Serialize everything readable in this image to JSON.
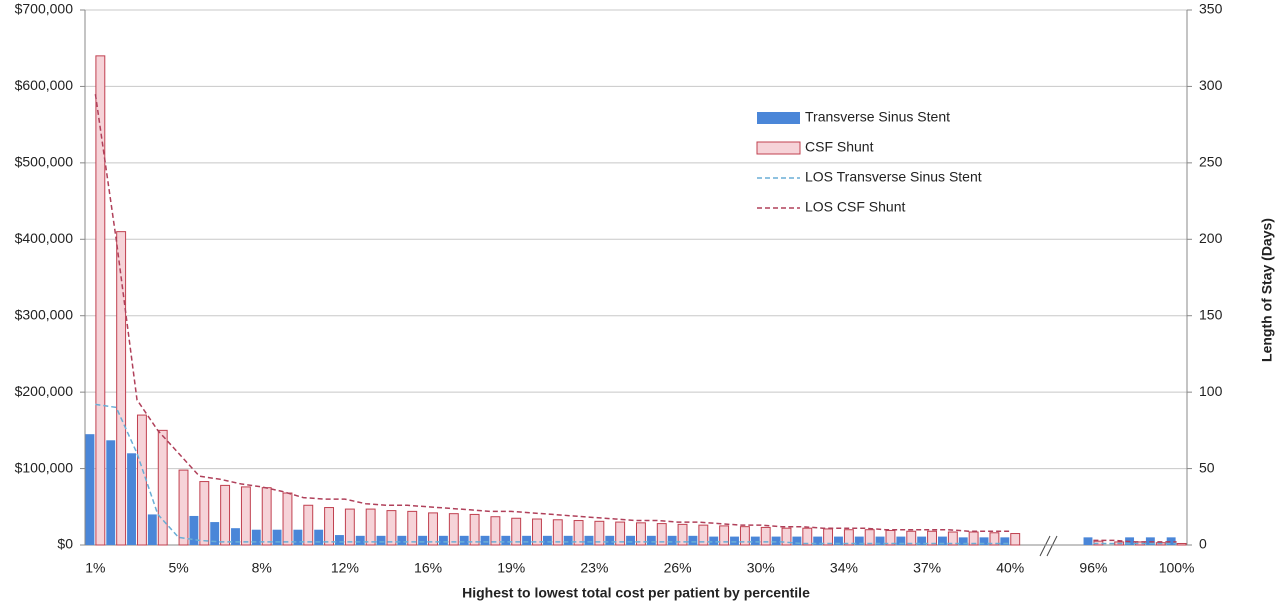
{
  "chart_data": {
    "type": "bar",
    "xlabel": "Highest to lowest total cost per patient by percentile",
    "y2label": "Length of Stay (Days)",
    "categories": [
      "1%",
      null,
      null,
      null,
      "5%",
      null,
      null,
      null,
      "8%",
      null,
      null,
      null,
      "12%",
      null,
      null,
      null,
      "16%",
      null,
      null,
      null,
      "19%",
      null,
      null,
      null,
      "23%",
      null,
      null,
      null,
      "26%",
      null,
      null,
      null,
      "30%",
      null,
      null,
      null,
      "34%",
      null,
      null,
      null,
      "37%",
      null,
      null,
      null,
      "40%",
      null,
      null,
      null,
      "96%",
      null,
      null,
      null,
      "100%"
    ],
    "ylim": [
      0,
      700000
    ],
    "yticks": [
      {
        "value": 0,
        "label": "$0"
      },
      {
        "value": 100000,
        "label": "$100,000"
      },
      {
        "value": 200000,
        "label": "$200,000"
      },
      {
        "value": 300000,
        "label": "$300,000"
      },
      {
        "value": 400000,
        "label": "$400,000"
      },
      {
        "value": 500000,
        "label": "$500,000"
      },
      {
        "value": 600000,
        "label": "$600,000"
      },
      {
        "value": 700000,
        "label": "$700,000"
      }
    ],
    "y2lim": [
      0,
      350
    ],
    "y2ticks": [
      0,
      50,
      100,
      150,
      200,
      250,
      300,
      350
    ],
    "grid": true,
    "legend": "upper right",
    "series": [
      {
        "name": "Transverse Sinus Stent",
        "color": "#4a86d8",
        "values": [
          145000,
          137000,
          120000,
          40000,
          0,
          38000,
          30000,
          22000,
          20000,
          20000,
          20000,
          20000,
          13000,
          12000,
          12000,
          12000,
          12000,
          12000,
          12000,
          12000,
          12000,
          12000,
          12000,
          12000,
          12000,
          12000,
          12000,
          12000,
          12000,
          12000,
          11000,
          11000,
          11000,
          11000,
          11000,
          11000,
          11000,
          11000,
          11000,
          11000,
          11000,
          11000,
          10000,
          10000,
          10000,
          null,
          null,
          null,
          10000,
          0,
          10000,
          10000,
          10000
        ]
      },
      {
        "name": "CSF Shunt",
        "color": "#f6d3d8",
        "edgecolor": "#c0404f",
        "values": [
          640000,
          410000,
          170000,
          150000,
          98000,
          83000,
          78000,
          76000,
          75000,
          68000,
          52000,
          49000,
          47000,
          47000,
          45000,
          44000,
          42000,
          41000,
          40000,
          37000,
          35000,
          34000,
          33000,
          32000,
          31000,
          30000,
          29000,
          28000,
          27000,
          26000,
          25000,
          24000,
          23000,
          22000,
          22000,
          21000,
          20000,
          20000,
          19000,
          18000,
          18000,
          17000,
          17000,
          16000,
          15000,
          null,
          null,
          null,
          5000,
          4000,
          4000,
          3000,
          2000
        ]
      },
      {
        "name": "LOS Transverse Sinus Stent",
        "type": "line",
        "axis": "y2",
        "color": "#6aaed6",
        "values": [
          92,
          90,
          60,
          20,
          5,
          3,
          2,
          2,
          2,
          2,
          2,
          2,
          2,
          2,
          2,
          2,
          2,
          2,
          2,
          2,
          2,
          2,
          2,
          2,
          2,
          2,
          2,
          2,
          2,
          2,
          2,
          2,
          2,
          2,
          1,
          1,
          1,
          1,
          1,
          1,
          1,
          1,
          1,
          1,
          1,
          null,
          null,
          null,
          1,
          1,
          1,
          1,
          1
        ]
      },
      {
        "name": "LOS CSF Shunt",
        "type": "line",
        "axis": "y2",
        "color": "#b0405a",
        "values": [
          295,
          200,
          95,
          75,
          60,
          45,
          43,
          40,
          38,
          35,
          31,
          30,
          30,
          27,
          26,
          26,
          25,
          24,
          23,
          22,
          22,
          21,
          20,
          19,
          18,
          17,
          16,
          16,
          15,
          15,
          14,
          13,
          13,
          12,
          12,
          11,
          11,
          11,
          10,
          10,
          10,
          10,
          9,
          9,
          9,
          null,
          null,
          null,
          3,
          3,
          2,
          2,
          2
        ]
      }
    ]
  }
}
